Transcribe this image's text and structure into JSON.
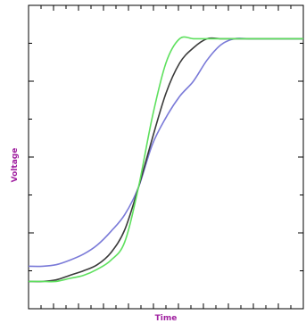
{
  "chart_data": {
    "type": "line",
    "title": "",
    "xlabel": "Time",
    "ylabel": "Voltage",
    "xlim": [
      0,
      100
    ],
    "ylim": [
      0,
      100
    ],
    "grid": false,
    "legend": "none",
    "label_color": "#a020a0",
    "series": [
      {
        "color": "#7a7ad8",
        "x": [
          0,
          5,
          10,
          15,
          20,
          25,
          30,
          35,
          40,
          45,
          50,
          55,
          60,
          65,
          70,
          75,
          80,
          85,
          90,
          95,
          100
        ],
        "values": [
          14,
          14,
          14.5,
          16,
          18,
          21,
          25.5,
          31,
          40,
          54,
          63,
          70,
          75,
          82,
          87,
          89,
          89,
          89,
          89,
          89,
          89
        ]
      },
      {
        "color": "#3a3a3a",
        "x": [
          0,
          5,
          10,
          15,
          20,
          25,
          30,
          35,
          40,
          45,
          50,
          55,
          60,
          65,
          70,
          75,
          80,
          85,
          90,
          95,
          100
        ],
        "values": [
          9,
          9,
          9.5,
          11,
          12.5,
          14.5,
          18.5,
          26,
          40,
          56,
          71,
          81,
          86,
          89,
          89,
          89,
          89,
          89,
          89,
          89,
          89
        ]
      },
      {
        "color": "#5ee05e",
        "x": [
          0,
          5,
          10,
          15,
          20,
          25,
          30,
          35,
          40,
          45,
          50,
          55,
          60,
          65,
          70,
          75,
          80,
          85,
          90,
          95,
          100
        ],
        "values": [
          9,
          9,
          9,
          10,
          11,
          13,
          16,
          22,
          40,
          63,
          81,
          89,
          89,
          89,
          89,
          89,
          89,
          89,
          89,
          89,
          89
        ]
      }
    ]
  }
}
